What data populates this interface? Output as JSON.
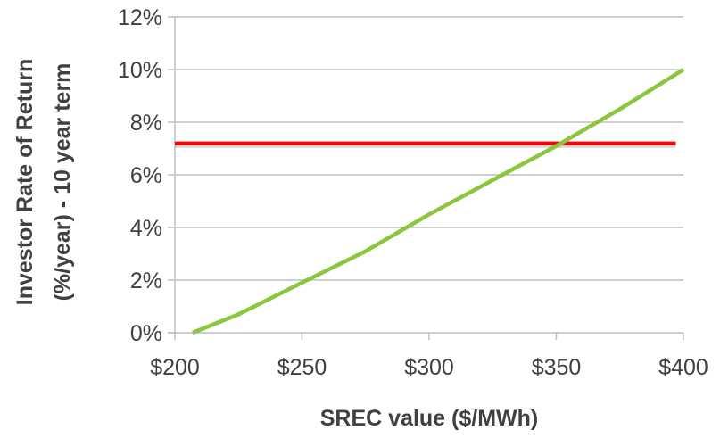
{
  "chart_data": {
    "type": "line",
    "title": "",
    "xlabel": "SREC value ($/MWh)",
    "ylabel_lines": [
      "Investor Rate of Return",
      "(%/year) - 10 year term"
    ],
    "xlim": [
      200,
      400
    ],
    "ylim": [
      0,
      12
    ],
    "x_ticks": [
      200,
      250,
      300,
      350,
      400
    ],
    "x_tick_labels": [
      "$200",
      "$250",
      "$300",
      "$350",
      "$400"
    ],
    "y_ticks": [
      0,
      2,
      4,
      6,
      8,
      10,
      12
    ],
    "y_tick_labels": [
      "0%",
      "2%",
      "4%",
      "6%",
      "8%",
      "10%",
      "12%"
    ],
    "grid": "horizontal",
    "legend": "none",
    "series": [
      {
        "color": "#8CC63F",
        "x": [
          207,
          225,
          250,
          275,
          300,
          325,
          350,
          375,
          400
        ],
        "y": [
          0,
          0.7,
          1.9,
          3.1,
          4.5,
          5.8,
          7.1,
          8.5,
          10.0
        ]
      }
    ],
    "reference_lines": [
      {
        "y": 7.2,
        "x_from": 200,
        "x_to": 397,
        "color": "#FF0000"
      }
    ]
  }
}
